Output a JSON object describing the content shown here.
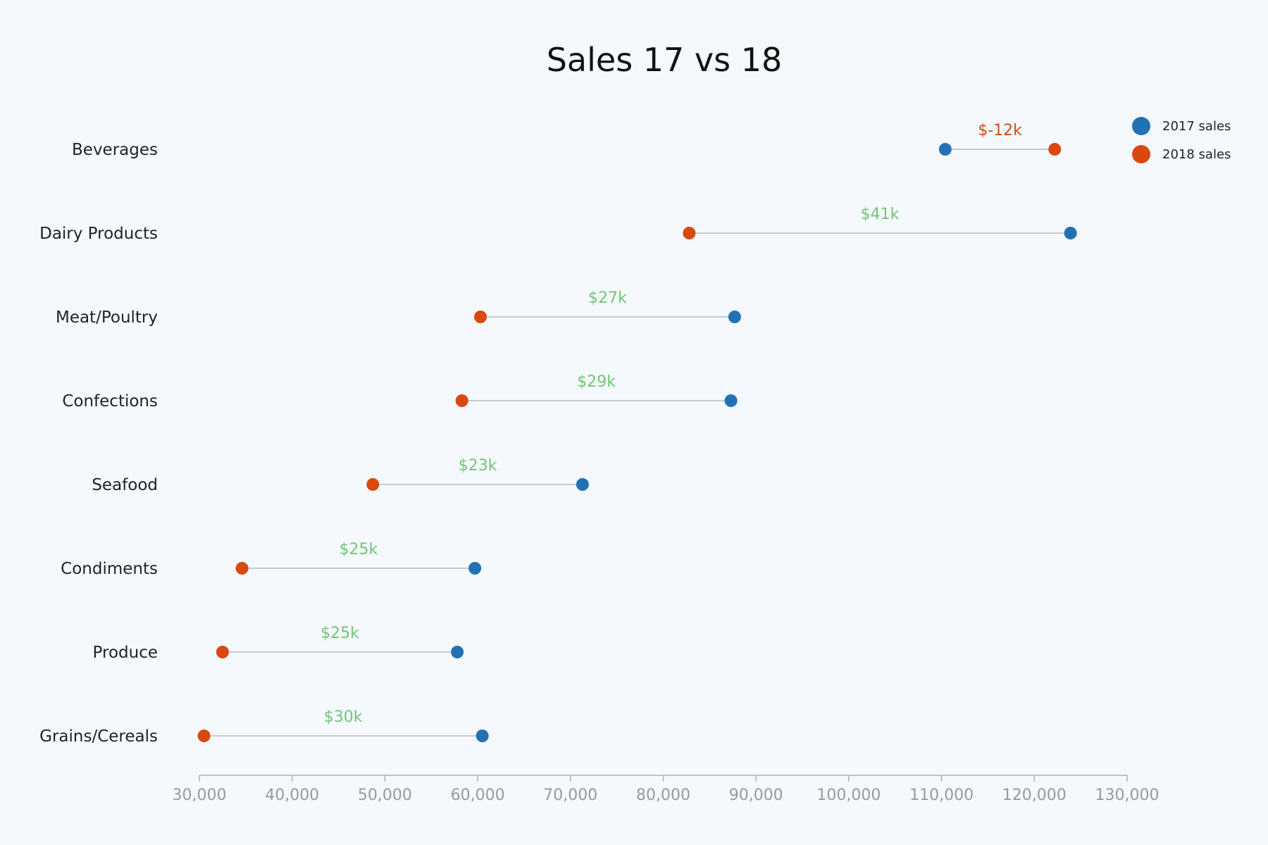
{
  "chart_data": {
    "type": "dumbbell",
    "title": "Sales 17 vs 18",
    "xlabel": "",
    "ylabel": "",
    "xlim": [
      30000,
      130000
    ],
    "x_ticks": [
      30000,
      40000,
      50000,
      60000,
      70000,
      80000,
      90000,
      100000,
      110000,
      120000,
      130000
    ],
    "x_tick_labels": [
      "30,000",
      "40,000",
      "50,000",
      "60,000",
      "70,000",
      "80,000",
      "90,000",
      "100,000",
      "110,000",
      "120,000",
      "130,000"
    ],
    "grid": false,
    "legend_position": "top-right",
    "categories": [
      "Beverages",
      "Dairy Products",
      "Meat/Poultry",
      "Confections",
      "Seafood",
      "Condiments",
      "Produce",
      "Grains/Cereals"
    ],
    "series": [
      {
        "name": "2017 sales",
        "color": "#2271b5",
        "values": [
          110400,
          123900,
          87700,
          87300,
          71300,
          59700,
          57800,
          60500
        ]
      },
      {
        "name": "2018 sales",
        "color": "#d9480f",
        "values": [
          122200,
          82800,
          60300,
          58300,
          48700,
          34600,
          32500,
          30500
        ]
      }
    ],
    "diff_labels": [
      "$-12k",
      "$41k",
      "$27k",
      "$29k",
      "$23k",
      "$25k",
      "$25k",
      "$30k"
    ],
    "colors": {
      "positive": "#74c476",
      "negative": "#d9480f",
      "connector": "#b8bcc2",
      "axis": "#b0b0b0"
    }
  }
}
